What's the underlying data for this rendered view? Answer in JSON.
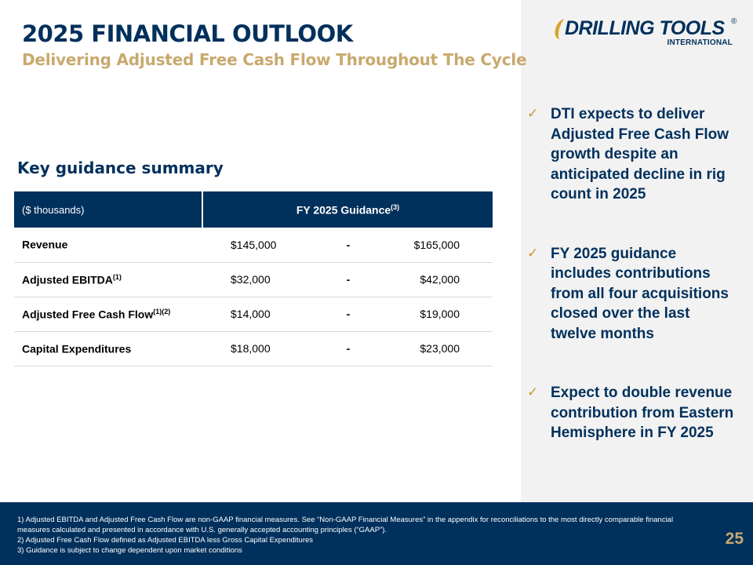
{
  "slide": {
    "title": "2025 FINANCIAL OUTLOOK",
    "subtitle": "Delivering Adjusted Free Cash Flow Throughout The Cycle",
    "page_number": "25"
  },
  "logo": {
    "main_text": "DRILLING TOOLS",
    "registered_mark": "®",
    "sub_text": "INTERNATIONAL"
  },
  "guidance": {
    "heading": "Key guidance summary",
    "header_units": "($ thousands)",
    "header_guidance": "FY 2025 Guidance",
    "header_guidance_sup": "(3)",
    "rows": [
      {
        "metric": "Revenue",
        "sup": "",
        "low": "$145,000",
        "dash": "-",
        "high": "$165,000"
      },
      {
        "metric": "Adjusted EBITDA",
        "sup": "(1)",
        "low": "$32,000",
        "dash": "-",
        "high": "$42,000"
      },
      {
        "metric": "Adjusted Free Cash Flow",
        "sup": "(1)(2)",
        "low": "$14,000",
        "dash": "-",
        "high": "$19,000"
      },
      {
        "metric": "Capital Expenditures",
        "sup": "",
        "low": "$18,000",
        "dash": "-",
        "high": "$23,000"
      }
    ]
  },
  "bullets": [
    {
      "check": "✓",
      "text": "DTI expects to deliver Adjusted Free Cash Flow growth despite an anticipated decline in rig count in 2025"
    },
    {
      "check": "✓",
      "text": "FY 2025 guidance includes contributions from all four acquisitions closed over the last twelve months"
    },
    {
      "check": "✓",
      "text": "Expect to double revenue contribution from Eastern Hemisphere in FY 2025"
    }
  ],
  "footnotes": [
    "1) Adjusted EBITDA and Adjusted Free Cash Flow are non-GAAP financial measures. See “Non-GAAP Financial Measures” in the appendix for reconciliations to the most directly comparable financial measures calculated and presented in accordance with U.S. generally accepted accounting principles (“GAAP”).",
    "2) Adjusted Free Cash Flow defined as Adjusted EBITDA less Gross Capital Expenditures",
    "3) Guidance is subject to change dependent upon market conditions"
  ],
  "colors": {
    "navy": "#00305c",
    "gold": "#c8a96e",
    "check_gold": "#c8962e",
    "panel_gray": "#f2f2f2"
  }
}
